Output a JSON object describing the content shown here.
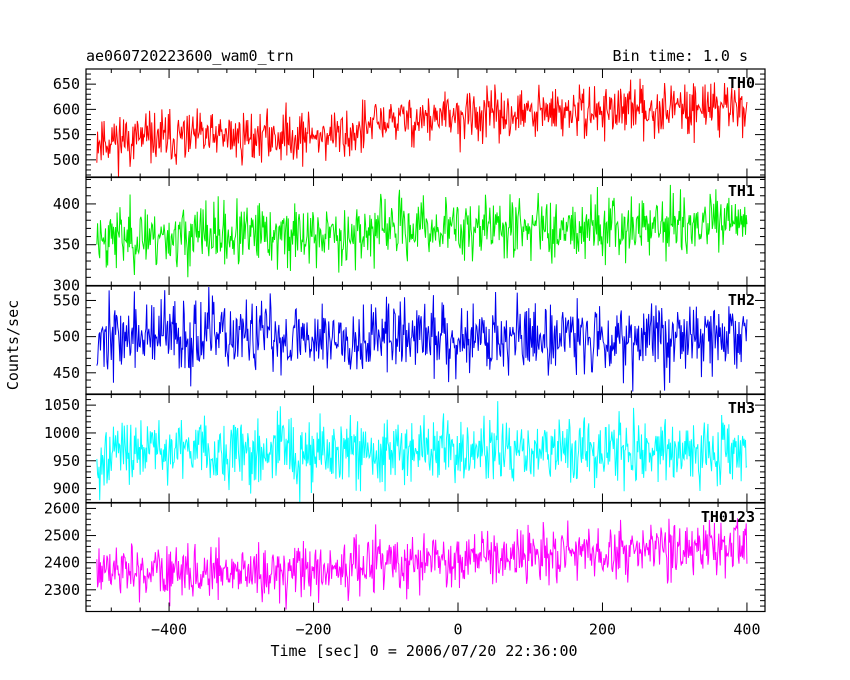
{
  "header": {
    "title": "ae060720223600_wam0_trn",
    "bin_time": "Bin time: 1.0 s"
  },
  "chart_data": {
    "type": "line",
    "xlabel": "Time [sec] 0 = 2006/07/20 22:36:00",
    "ylabel": "Counts/sec",
    "xlim": [
      -515,
      425
    ],
    "x_range": [
      -500,
      400
    ],
    "x_ticks": [
      -400,
      -200,
      0,
      200,
      400
    ],
    "x_tick_labels": [
      "−400",
      "−200",
      "0",
      "200",
      "400"
    ],
    "grid": false,
    "panels": [
      {
        "name": "TH0",
        "color": "#ff0000",
        "ylim": [
          465,
          680
        ],
        "y_ticks": [
          500,
          550,
          600,
          650
        ],
        "trend": [
          [
            -500,
            540
          ],
          [
            -150,
            550
          ],
          [
            -100,
            578
          ],
          [
            400,
            610
          ]
        ],
        "noise_sd": 28,
        "seed": 11
      },
      {
        "name": "TH1",
        "color": "#00ee00",
        "ylim": [
          300,
          433
        ],
        "y_ticks": [
          300,
          350,
          400
        ],
        "trend": [
          [
            -500,
            360
          ],
          [
            -150,
            362
          ],
          [
            -100,
            370
          ],
          [
            400,
            375
          ]
        ],
        "noise_sd": 21,
        "seed": 23
      },
      {
        "name": "TH2",
        "color": "#0000ee",
        "ylim": [
          420,
          570
        ],
        "y_ticks": [
          450,
          500,
          550
        ],
        "trend": [
          [
            -500,
            500
          ],
          [
            400,
            500
          ]
        ],
        "noise_sd": 28,
        "seed": 37
      },
      {
        "name": "TH3",
        "color": "#00ffff",
        "ylim": [
          875,
          1070
        ],
        "y_ticks": [
          900,
          950,
          1000,
          1050
        ],
        "trend": [
          [
            -500,
            962
          ],
          [
            400,
            968
          ]
        ],
        "noise_sd": 33,
        "seed": 49
      },
      {
        "name": "TH0123",
        "color": "#ff00ff",
        "ylim": [
          2220,
          2620
        ],
        "y_ticks": [
          2300,
          2400,
          2500,
          2600
        ],
        "trend": [
          [
            -500,
            2360
          ],
          [
            -150,
            2370
          ],
          [
            -100,
            2405
          ],
          [
            400,
            2455
          ]
        ],
        "noise_sd": 58,
        "seed": 61
      }
    ]
  }
}
